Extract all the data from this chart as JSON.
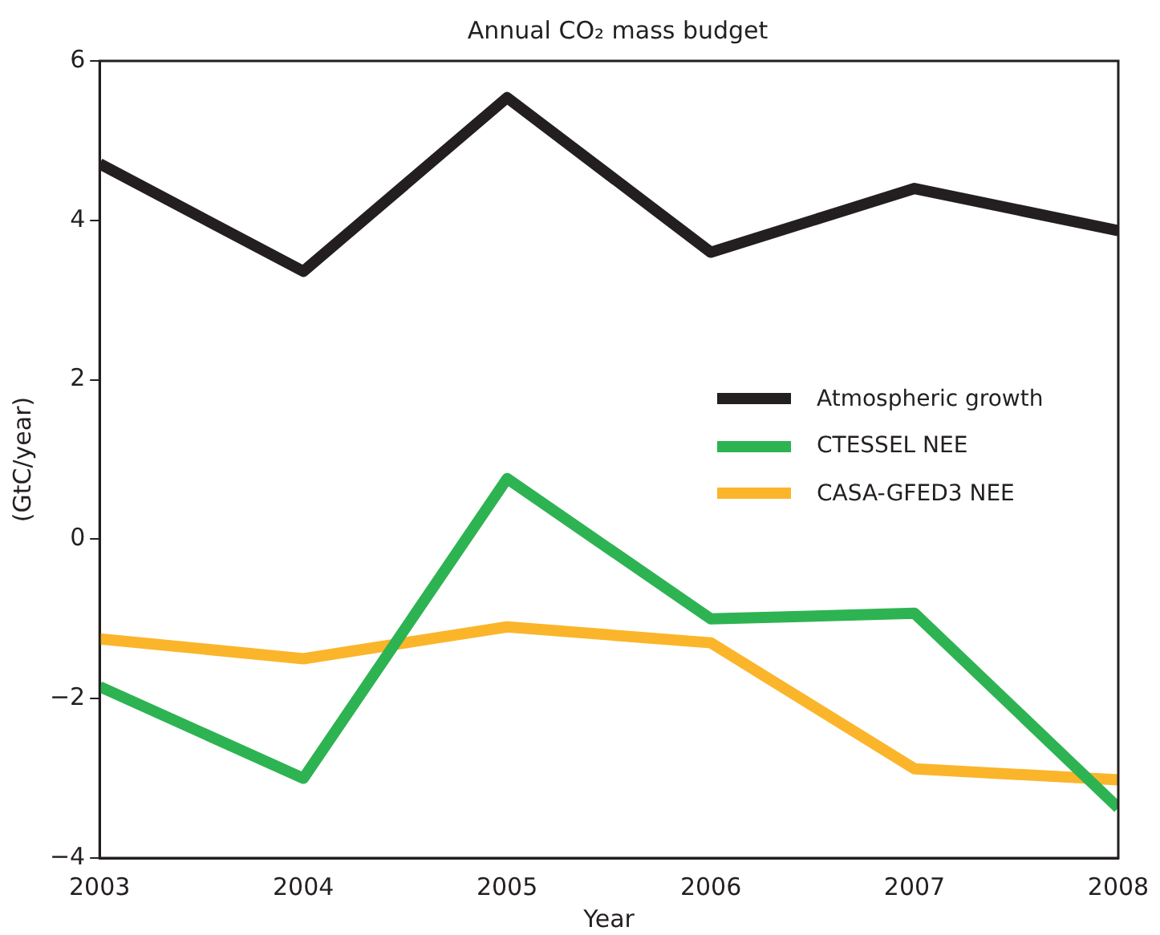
{
  "chart_data": {
    "type": "line",
    "title": "Annual CO₂ mass budget",
    "xlabel": "Year",
    "ylabel": "(GtC/year)",
    "x": [
      2003,
      2004,
      2005,
      2006,
      2007,
      2008
    ],
    "series": [
      {
        "name": "Atmospheric growth",
        "color": "#231f20",
        "values": [
          4.71,
          3.36,
          5.54,
          3.6,
          4.4,
          3.87
        ]
      },
      {
        "name": "CTESSEL NEE",
        "color": "#2eb352",
        "values": [
          -1.85,
          -3.0,
          0.76,
          -1.0,
          -0.93,
          -3.37
        ]
      },
      {
        "name": "CASA-GFED3 NEE",
        "color": "#fbb52a",
        "values": [
          -1.25,
          -1.5,
          -1.1,
          -1.3,
          -2.88,
          -3.02
        ]
      }
    ],
    "xlim": [
      2003,
      2008
    ],
    "xticks": [
      2003,
      2004,
      2005,
      2006,
      2007,
      2008
    ],
    "ylim": [
      -4,
      6
    ],
    "yticks": [
      -4,
      -2,
      0,
      2,
      4,
      6
    ],
    "grid": false,
    "legend": "right",
    "marker": "none",
    "line_style": "solid"
  }
}
